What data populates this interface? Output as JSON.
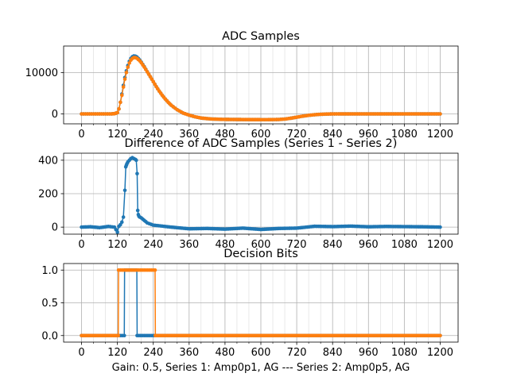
{
  "figure": {
    "xlabel": "Gain: 0.5, Series 1: Amp0p1, AG --- Series 2: Amp0p5, AG"
  },
  "colors": {
    "series1": "#1f77b4",
    "series2": "#ff7f0e",
    "grid": "#b0b0b0",
    "axes": "#000000"
  },
  "chart_data": [
    {
      "type": "line",
      "title": "ADC Samples",
      "xlim": [
        -60,
        1260
      ],
      "ylim": [
        -2400,
        16400
      ],
      "xticks": [
        0,
        120,
        240,
        360,
        480,
        600,
        720,
        840,
        960,
        1080,
        1200
      ],
      "yticks": [
        0,
        10000
      ],
      "grid": true,
      "marker": "circle",
      "series": [
        {
          "x": [
            0,
            20,
            40,
            60,
            80,
            100,
            110,
            120,
            125,
            130,
            135,
            140,
            145,
            150,
            155,
            160,
            165,
            170,
            175,
            180,
            185,
            190,
            195,
            200,
            210,
            220,
            230,
            240,
            250,
            260,
            270,
            280,
            290,
            300,
            320,
            340,
            360,
            380,
            400,
            420,
            440,
            460,
            480,
            520,
            560,
            600,
            620,
            640,
            660,
            680,
            700,
            720,
            740,
            760,
            780,
            800,
            820,
            840,
            860,
            900,
            960,
            1020,
            1080,
            1140,
            1200
          ],
          "values": [
            0,
            0,
            0,
            0,
            0,
            0,
            50,
            300,
            1200,
            2800,
            4800,
            6900,
            8800,
            10400,
            11700,
            12700,
            13400,
            13800,
            14000,
            13950,
            13750,
            13400,
            13000,
            12500,
            11400,
            10200,
            9000,
            7800,
            6600,
            5500,
            4500,
            3600,
            2800,
            2100,
            1000,
            200,
            -300,
            -700,
            -1000,
            -1150,
            -1250,
            -1300,
            -1330,
            -1360,
            -1380,
            -1390,
            -1390,
            -1380,
            -1350,
            -1250,
            -1050,
            -800,
            -550,
            -350,
            -200,
            -100,
            -40,
            -10,
            0,
            0,
            0,
            0,
            0,
            0,
            0
          ]
        },
        {
          "x": [
            0,
            20,
            40,
            60,
            80,
            100,
            110,
            120,
            125,
            130,
            135,
            140,
            145,
            150,
            155,
            160,
            165,
            170,
            175,
            180,
            185,
            190,
            195,
            200,
            210,
            220,
            230,
            240,
            250,
            260,
            270,
            280,
            290,
            300,
            320,
            340,
            360,
            380,
            400,
            420,
            440,
            460,
            480,
            520,
            560,
            600,
            620,
            640,
            660,
            680,
            700,
            720,
            740,
            760,
            780,
            800,
            820,
            840,
            860,
            900,
            960,
            1020,
            1080,
            1140,
            1200
          ],
          "values": [
            0,
            0,
            0,
            0,
            0,
            0,
            50,
            300,
            1200,
            2800,
            4500,
            6500,
            8400,
            10000,
            11300,
            12300,
            13000,
            13400,
            13600,
            13600,
            13450,
            13150,
            12800,
            12350,
            11300,
            10150,
            9000,
            7800,
            6600,
            5500,
            4500,
            3600,
            2800,
            2100,
            1000,
            200,
            -300,
            -700,
            -1000,
            -1150,
            -1250,
            -1300,
            -1330,
            -1360,
            -1380,
            -1390,
            -1390,
            -1380,
            -1350,
            -1250,
            -1050,
            -800,
            -550,
            -350,
            -200,
            -100,
            -40,
            -10,
            0,
            0,
            0,
            0,
            0,
            0,
            0
          ]
        }
      ]
    },
    {
      "type": "line",
      "title": "Difference of ADC Samples (Series 1 - Series 2)",
      "xlim": [
        -60,
        1260
      ],
      "ylim": [
        -42,
        442
      ],
      "xticks": [
        0,
        120,
        240,
        360,
        480,
        600,
        720,
        840,
        960,
        1080,
        1200
      ],
      "yticks": [
        0,
        200,
        400
      ],
      "grid": true,
      "marker": "circle",
      "series": [
        {
          "x": [
            0,
            30,
            60,
            90,
            110,
            120,
            125,
            130,
            135,
            140,
            145,
            148,
            150,
            152,
            155,
            160,
            165,
            170,
            175,
            180,
            183,
            186,
            188,
            190,
            192,
            195,
            200,
            210,
            220,
            240,
            270,
            300,
            360,
            420,
            480,
            540,
            600,
            660,
            720,
            780,
            840,
            900,
            960,
            1020,
            1080,
            1140,
            1200
          ],
          "values": [
            0,
            2,
            -3,
            4,
            0,
            -30,
            5,
            15,
            30,
            60,
            220,
            360,
            370,
            380,
            390,
            400,
            410,
            415,
            410,
            405,
            400,
            320,
            100,
            75,
            65,
            60,
            55,
            40,
            25,
            12,
            6,
            0,
            -10,
            -8,
            -12,
            -6,
            -14,
            -8,
            -6,
            5,
            3,
            6,
            2,
            4,
            3,
            2,
            0
          ]
        }
      ]
    },
    {
      "type": "line",
      "title": "Decision Bits",
      "xlim": [
        -60,
        1260
      ],
      "ylim": [
        -0.1,
        1.1
      ],
      "xticks": [
        0,
        120,
        240,
        360,
        480,
        600,
        720,
        840,
        960,
        1080,
        1200
      ],
      "yticks": [
        0.0,
        0.5,
        1.0
      ],
      "grid": true,
      "marker": "circle",
      "series": [
        {
          "x": [
            0,
            100,
            143,
            144,
            185,
            186,
            1200
          ],
          "values": [
            0,
            0,
            0,
            1,
            1,
            0,
            0
          ]
        },
        {
          "x": [
            0,
            100,
            123,
            124,
            246,
            247,
            1200
          ],
          "values": [
            0,
            0,
            0,
            1,
            1,
            0,
            0
          ]
        }
      ]
    }
  ]
}
